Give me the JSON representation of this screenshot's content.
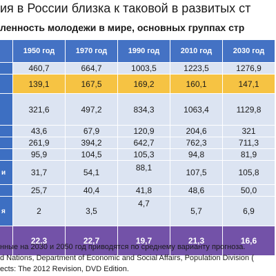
{
  "title": "ия в России близка к таковой в развитых ст",
  "subtitle": "ленность молодежи в мире, основных группах стр",
  "table": {
    "headers": [
      "1950 год",
      "1970 год",
      "1990 год",
      "2010 год",
      "2030 год"
    ],
    "rows": [
      {
        "label": "",
        "values": [
          "460,7",
          "664,7",
          "1003,5",
          "1223,5",
          "1276,9"
        ]
      },
      {
        "label": "",
        "values": [
          "139,1",
          "167,5",
          "169,2",
          "160,1",
          "147,1"
        ]
      },
      {
        "label": "",
        "values": [
          "321,6",
          "497,2",
          "834,3",
          "1063,4",
          "1129,8"
        ]
      },
      {
        "label": "",
        "values": [
          "43,6",
          "67,9",
          "120,9",
          "204,6",
          "321"
        ]
      },
      {
        "label": "",
        "values": [
          "261,9",
          "394,2",
          "642,7",
          "762,3",
          "711,3"
        ]
      },
      {
        "label": "",
        "values": [
          "95,9",
          "104,5",
          "105,3",
          "94,8",
          "81,9"
        ]
      },
      {
        "label": "и",
        "values": [
          "31,7",
          "54,1",
          "88,1",
          "107,5",
          "105,8"
        ]
      },
      {
        "label": "",
        "values": [
          "25,7",
          "40,4",
          "41,8",
          "48,6",
          "50,0"
        ]
      },
      {
        "label": "я",
        "values": [
          "2",
          "3,5",
          "4,7",
          "5,7",
          "6,9"
        ]
      },
      {
        "label": "",
        "values": [
          "22,3",
          "22,7",
          "19,7",
          "21,3",
          "16,6"
        ]
      }
    ]
  },
  "footer": {
    "line1": "нные на 2030 и 2050 год приводятся по среднему варианту прогноза.",
    "line2": "d Nations, Department of Economic and Social Affairs, Population Division (",
    "line3": "ects: The 2012 Revision, DVD Edition."
  }
}
